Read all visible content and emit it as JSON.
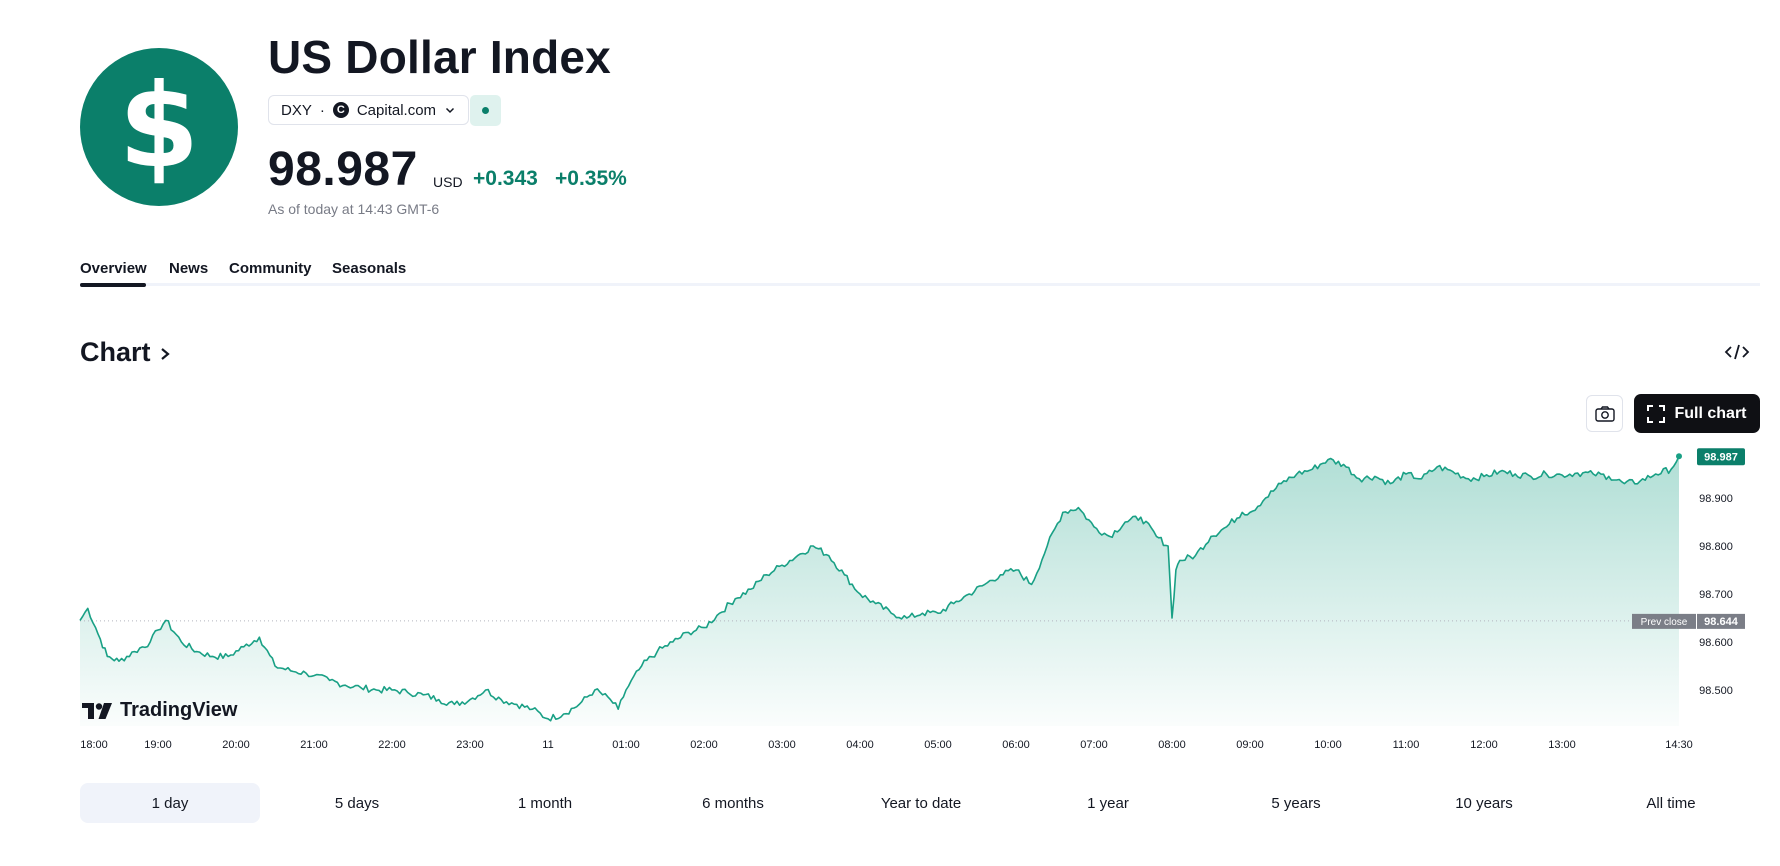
{
  "header": {
    "logo_glyph": "$",
    "title": "US Dollar Index",
    "symbol": "DXY",
    "separator": "·",
    "exchange": "Capital.com",
    "exchange_icon": "capital-com-icon",
    "price": "98.987",
    "currency": "USD",
    "change": "+0.343",
    "change_percent": "+0.35%",
    "as_of": "As of today at 14:43 GMT-6"
  },
  "tabs": [
    {
      "label": "Overview",
      "active": true
    },
    {
      "label": "News",
      "active": false
    },
    {
      "label": "Community",
      "active": false
    },
    {
      "label": "Seasonals",
      "active": false
    }
  ],
  "chart_section": {
    "heading": "Chart",
    "embed_icon": "code-embed-icon",
    "screenshot_icon": "camera-icon",
    "full_chart_label": "Full chart",
    "full_chart_icon": "fullscreen-icon",
    "watermark": "TradingView"
  },
  "colors": {
    "accent": "#0b7f6a",
    "line": "#19a085",
    "text": "#131722",
    "muted": "#787b86",
    "prev_close_badge": "#7b7e87"
  },
  "chart_data": {
    "type": "area",
    "title": "US Dollar Index",
    "x_tick_labels": [
      "18:00",
      "19:00",
      "20:00",
      "21:00",
      "22:00",
      "23:00",
      "11",
      "01:00",
      "02:00",
      "03:00",
      "04:00",
      "05:00",
      "06:00",
      "07:00",
      "08:00",
      "09:00",
      "10:00",
      "11:00",
      "12:00",
      "13:00",
      "14:30"
    ],
    "y_tick_labels": [
      "98.900",
      "98.800",
      "98.700",
      "98.600",
      "98.500"
    ],
    "ylim": [
      98.425,
      99.0
    ],
    "prev_close": 98.644,
    "prev_close_label": "Prev close",
    "prev_close_value": "98.644",
    "last_price_label": "98.987",
    "series": [
      {
        "name": "DXY",
        "x": [
          0,
          0.1,
          0.2,
          0.35,
          0.5,
          0.7,
          0.9,
          1.0,
          1.1,
          1.3,
          1.5,
          1.7,
          1.9,
          2.1,
          2.3,
          2.5,
          2.7,
          2.9,
          3.0,
          3.2,
          3.4,
          3.6,
          3.8,
          4.0,
          4.2,
          4.4,
          4.6,
          4.8,
          5.0,
          5.2,
          5.4,
          5.6,
          5.8,
          6.0,
          6.2,
          6.4,
          6.6,
          6.8,
          6.9,
          7.0,
          7.2,
          7.4,
          7.6,
          7.8,
          8.0,
          8.2,
          8.4,
          8.6,
          8.8,
          9.0,
          9.2,
          9.4,
          9.6,
          9.8,
          10.0,
          10.2,
          10.4,
          10.6,
          10.8,
          11.0,
          11.2,
          11.4,
          11.6,
          11.8,
          12.0,
          12.2,
          12.4,
          12.6,
          12.8,
          13.0,
          13.2,
          13.4,
          13.6,
          13.8,
          13.95,
          14.0,
          14.05,
          14.1,
          14.3,
          14.5,
          14.7,
          14.9,
          15.0,
          15.2,
          15.4,
          15.6,
          15.8,
          16.0,
          16.2,
          16.4,
          16.6,
          16.8,
          17.0,
          17.2,
          17.4,
          17.6,
          17.8,
          18.0,
          18.2,
          18.4,
          18.6,
          18.8,
          19.0,
          19.2,
          19.4,
          19.6,
          19.8,
          20.0,
          20.2,
          20.4,
          20.5
        ],
        "values": [
          98.645,
          98.67,
          98.63,
          98.57,
          98.56,
          98.58,
          98.6,
          98.625,
          98.645,
          98.6,
          98.58,
          98.57,
          98.57,
          98.59,
          98.61,
          98.55,
          98.54,
          98.535,
          98.53,
          98.52,
          98.51,
          98.505,
          98.5,
          98.5,
          98.495,
          98.49,
          98.48,
          98.47,
          98.48,
          98.5,
          98.48,
          98.47,
          98.46,
          98.44,
          98.45,
          98.47,
          98.5,
          98.48,
          98.46,
          98.5,
          98.55,
          98.58,
          98.6,
          98.62,
          98.63,
          98.66,
          98.69,
          98.71,
          98.74,
          98.76,
          98.78,
          98.8,
          98.78,
          98.74,
          98.7,
          98.68,
          98.66,
          98.65,
          98.66,
          98.66,
          98.68,
          98.7,
          98.72,
          98.74,
          98.75,
          98.72,
          98.8,
          98.87,
          98.88,
          98.84,
          98.82,
          98.85,
          98.86,
          98.82,
          98.8,
          98.65,
          98.75,
          98.77,
          98.78,
          98.82,
          98.84,
          98.87,
          98.87,
          98.9,
          98.93,
          98.95,
          98.96,
          98.98,
          98.97,
          98.94,
          98.945,
          98.93,
          98.95,
          98.94,
          98.965,
          98.955,
          98.94,
          98.945,
          98.955,
          98.95,
          98.945,
          98.95,
          98.948,
          98.952,
          98.95,
          98.945,
          98.93,
          98.935,
          98.95,
          98.96,
          98.987
        ]
      }
    ],
    "xlabel": "",
    "ylabel": ""
  },
  "ranges": [
    {
      "label": "1 day",
      "active": true
    },
    {
      "label": "5 days",
      "active": false
    },
    {
      "label": "1 month",
      "active": false
    },
    {
      "label": "6 months",
      "active": false
    },
    {
      "label": "Year to date",
      "active": false
    },
    {
      "label": "1 year",
      "active": false
    },
    {
      "label": "5 years",
      "active": false
    },
    {
      "label": "10 years",
      "active": false
    },
    {
      "label": "All time",
      "active": false
    }
  ]
}
